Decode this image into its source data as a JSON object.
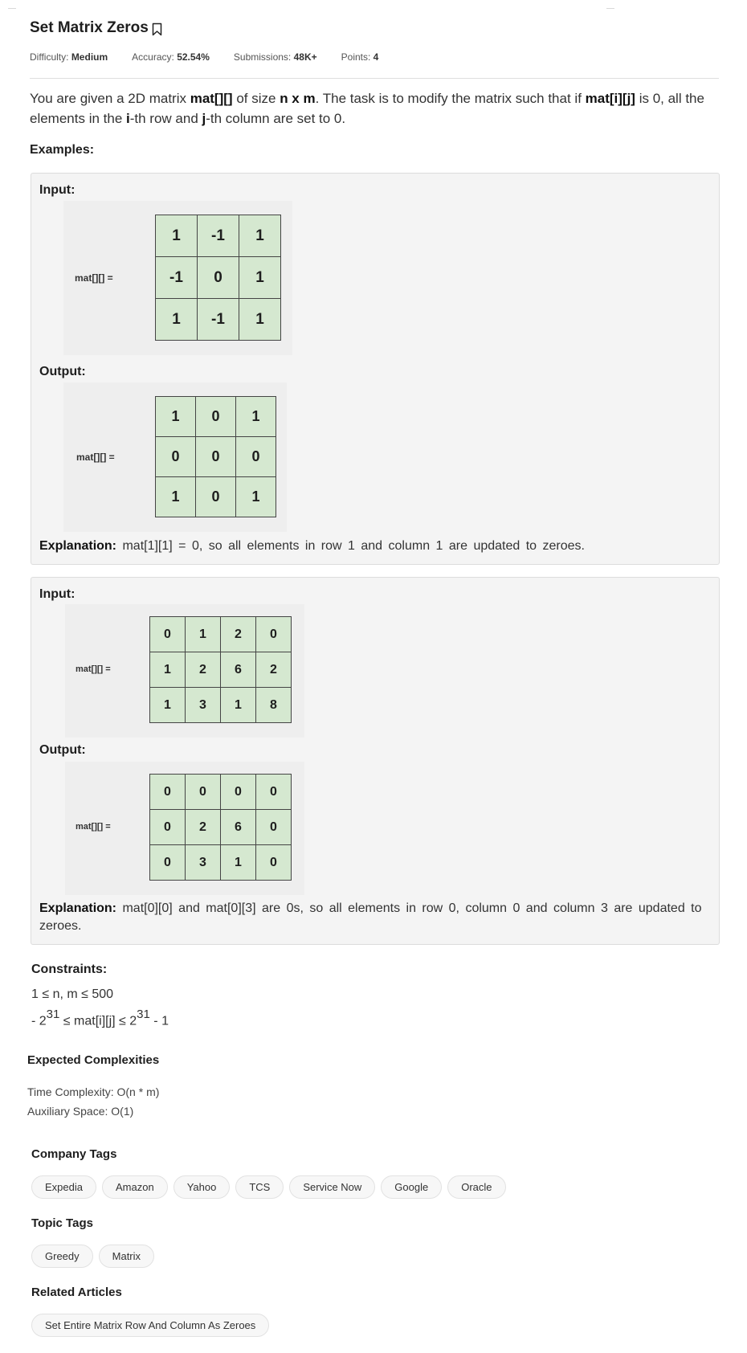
{
  "problem": {
    "title": "Set Matrix Zeros",
    "difficulty_label": "Difficulty:",
    "difficulty_value": "Medium",
    "accuracy_label": "Accuracy:",
    "accuracy_value": "52.54%",
    "submissions_label": "Submissions:",
    "submissions_value": "48K+",
    "points_label": "Points:",
    "points_value": "4"
  },
  "statement": {
    "p1": "You are given a 2D matrix ",
    "b1": "mat[][]",
    "p2": " of size ",
    "b2": "n x m",
    "p3": ". The task is to modify the matrix such that if ",
    "b3": "mat[i][j]",
    "p4": " is 0, all the elements in the ",
    "b4": "i",
    "p5": "-th row and ",
    "b5": "j",
    "p6": "-th column are set to 0."
  },
  "examples_label": "Examples:",
  "example1": {
    "input_label": "Input:",
    "output_label": "Output:",
    "mat_label": "mat[][] =",
    "input": [
      [
        "1",
        "-1",
        "1"
      ],
      [
        "-1",
        "0",
        "1"
      ],
      [
        "1",
        "-1",
        "1"
      ]
    ],
    "output": [
      [
        "1",
        "0",
        "1"
      ],
      [
        "0",
        "0",
        "0"
      ],
      [
        "1",
        "0",
        "1"
      ]
    ],
    "explanation_label": "Explanation:",
    "explanation": "mat[1][1] = 0, so all elements in row 1 and column 1 are updated to zeroes."
  },
  "example2": {
    "input_label": "Input:",
    "output_label": "Output:",
    "mat_label": "mat[][] =",
    "input": [
      [
        "0",
        "1",
        "2",
        "0"
      ],
      [
        "1",
        "2",
        "6",
        "2"
      ],
      [
        "1",
        "3",
        "1",
        "8"
      ]
    ],
    "output": [
      [
        "0",
        "0",
        "0",
        "0"
      ],
      [
        "0",
        "2",
        "6",
        "0"
      ],
      [
        "0",
        "3",
        "1",
        "0"
      ]
    ],
    "explanation_label": "Explanation:",
    "explanation": "mat[0][0] and mat[0][3] are 0s, so all elements in row 0, column 0 and column 3 are updated to zeroes."
  },
  "constraints": {
    "label": "Constraints:",
    "line1": "1 ≤ n, m ≤ 500",
    "line2_a": "- 2",
    "line2_sup1": "31",
    "line2_b": " ≤ mat[i][j] ≤ 2",
    "line2_sup2": "31",
    "line2_c": " - 1"
  },
  "complexities": {
    "label": "Expected Complexities",
    "time": "Time Complexity: O(n * m)",
    "space": "Auxiliary Space: O(1)"
  },
  "company_tags": {
    "label": "Company Tags",
    "items": [
      "Expedia",
      "Amazon",
      "Yahoo",
      "TCS",
      "Service Now",
      "Google",
      "Oracle"
    ]
  },
  "topic_tags": {
    "label": "Topic Tags",
    "items": [
      "Greedy",
      "Matrix"
    ]
  },
  "related": {
    "label": "Related Articles",
    "items": [
      "Set Entire Matrix Row And Column As Zeroes"
    ]
  }
}
